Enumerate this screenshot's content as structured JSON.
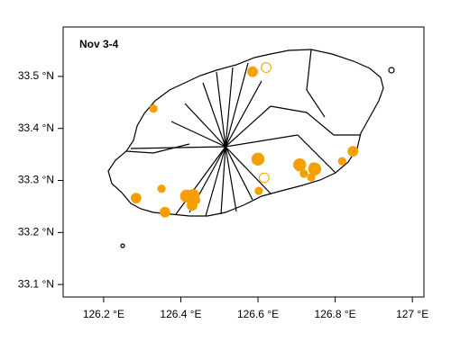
{
  "chart_data": {
    "type": "scatter",
    "title": "Nov 3-4",
    "x": [
      126.329,
      126.586,
      126.621,
      126.6,
      126.616,
      126.602,
      126.708,
      126.719,
      126.743,
      126.747,
      126.738,
      126.818,
      126.846,
      126.284,
      126.35,
      126.359,
      126.415,
      126.432,
      126.429,
      126.44
    ],
    "values": [
      33.438,
      33.509,
      33.517,
      33.341,
      33.305,
      33.28,
      33.33,
      33.313,
      33.327,
      33.322,
      33.306,
      33.337,
      33.356,
      33.266,
      33.284,
      33.239,
      33.27,
      33.271,
      33.252,
      33.262
    ],
    "sizes": [
      2,
      3,
      3,
      4,
      3,
      2,
      4,
      2,
      2,
      4,
      2,
      2,
      3,
      3,
      2,
      3,
      4,
      4,
      3,
      2
    ],
    "filled": [
      true,
      true,
      false,
      true,
      false,
      true,
      true,
      true,
      true,
      true,
      true,
      true,
      true,
      true,
      true,
      true,
      true,
      true,
      true,
      true
    ],
    "color": "#f5a000",
    "xlim": [
      126.095,
      127.03
    ],
    "ylim": [
      33.076,
      33.595
    ],
    "xticks": [
      {
        "value": 126.2,
        "label": "126.2 °E"
      },
      {
        "value": 126.4,
        "label": "126.4 °E"
      },
      {
        "value": 126.6,
        "label": "126.6 °E"
      },
      {
        "value": 126.8,
        "label": "126.8 °E"
      },
      {
        "value": 127,
        "label": "127 °E"
      }
    ],
    "yticks": [
      {
        "value": 33.1,
        "label": "33.1 °N"
      },
      {
        "value": 33.2,
        "label": "33.2 °N"
      },
      {
        "value": 33.3,
        "label": "33.3 °N"
      },
      {
        "value": 33.4,
        "label": "33.4 °N"
      },
      {
        "value": 33.5,
        "label": "33.5 °N"
      }
    ]
  }
}
